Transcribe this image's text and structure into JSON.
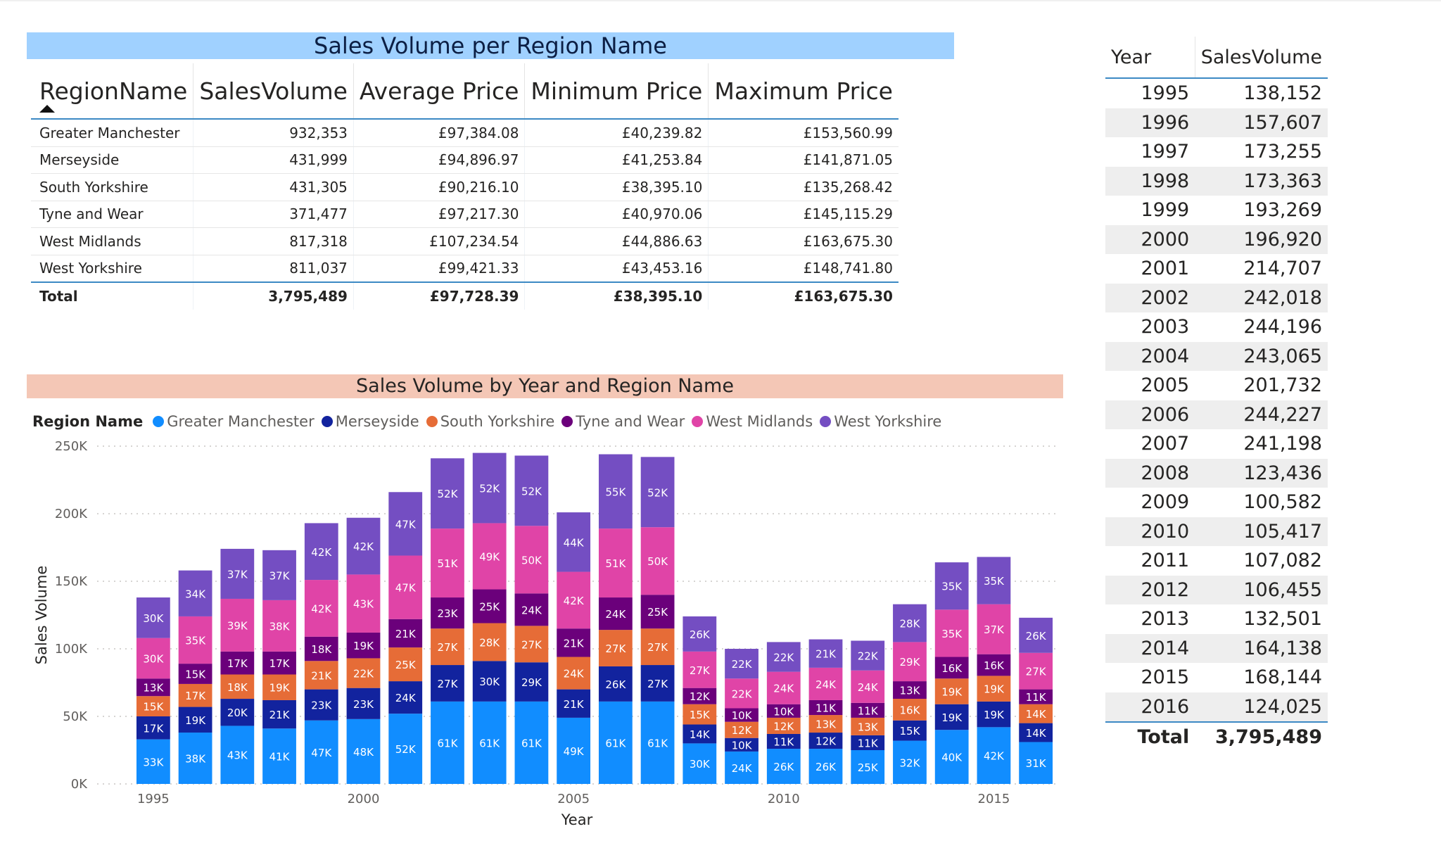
{
  "region_table": {
    "title": "Sales Volume per Region Name",
    "columns": [
      "RegionName",
      "SalesVolume",
      "Average Price",
      "Minimum Price",
      "Maximum Price"
    ],
    "rows": [
      [
        "Greater Manchester",
        "932,353",
        "£97,384.08",
        "£40,239.82",
        "£153,560.99"
      ],
      [
        "Merseyside",
        "431,999",
        "£94,896.97",
        "£41,253.84",
        "£141,871.05"
      ],
      [
        "South Yorkshire",
        "431,305",
        "£90,216.10",
        "£38,395.10",
        "£135,268.42"
      ],
      [
        "Tyne and Wear",
        "371,477",
        "£97,217.30",
        "£40,970.06",
        "£145,115.29"
      ],
      [
        "West Midlands",
        "817,318",
        "£107,234.54",
        "£44,886.63",
        "£163,675.30"
      ],
      [
        "West Yorkshire",
        "811,037",
        "£99,421.33",
        "£43,453.16",
        "£148,741.80"
      ]
    ],
    "total": [
      "Total",
      "3,795,489",
      "£97,728.39",
      "£38,395.10",
      "£163,675.30"
    ]
  },
  "year_table": {
    "columns": [
      "Year",
      "SalesVolume"
    ],
    "rows": [
      [
        "1995",
        "138,152"
      ],
      [
        "1996",
        "157,607"
      ],
      [
        "1997",
        "173,255"
      ],
      [
        "1998",
        "173,363"
      ],
      [
        "1999",
        "193,269"
      ],
      [
        "2000",
        "196,920"
      ],
      [
        "2001",
        "214,707"
      ],
      [
        "2002",
        "242,018"
      ],
      [
        "2003",
        "244,196"
      ],
      [
        "2004",
        "243,065"
      ],
      [
        "2005",
        "201,732"
      ],
      [
        "2006",
        "244,227"
      ],
      [
        "2007",
        "241,198"
      ],
      [
        "2008",
        "123,436"
      ],
      [
        "2009",
        "100,582"
      ],
      [
        "2010",
        "105,417"
      ],
      [
        "2011",
        "107,082"
      ],
      [
        "2012",
        "106,455"
      ],
      [
        "2013",
        "132,501"
      ],
      [
        "2014",
        "164,138"
      ],
      [
        "2015",
        "168,144"
      ],
      [
        "2016",
        "124,025"
      ]
    ],
    "total": [
      "Total",
      "3,795,489"
    ]
  },
  "chart_data": {
    "type": "bar",
    "stacked": true,
    "title": "Sales Volume by Year and Region Name",
    "legend_title": "Region Name",
    "xlabel": "Year",
    "ylabel": "Sales Volume",
    "ylim": [
      0,
      250000
    ],
    "y_ticks": [
      0,
      50000,
      100000,
      150000,
      200000,
      250000
    ],
    "y_tick_labels": [
      "0K",
      "50K",
      "100K",
      "150K",
      "200K",
      "250K"
    ],
    "x_tick_labels": [
      "1995",
      "2000",
      "2005",
      "2010",
      "2015"
    ],
    "grid": true,
    "legend_position": "top-left",
    "categories": [
      1995,
      1996,
      1997,
      1998,
      1999,
      2000,
      2001,
      2002,
      2003,
      2004,
      2005,
      2006,
      2007,
      2008,
      2009,
      2010,
      2011,
      2012,
      2013,
      2014,
      2015,
      2016
    ],
    "series": [
      {
        "name": "Greater Manchester",
        "color": "#118dff",
        "values": [
          33,
          38,
          43,
          41,
          47,
          48,
          52,
          61,
          61,
          61,
          49,
          61,
          61,
          30,
          24,
          26,
          26,
          25,
          32,
          40,
          42,
          31
        ]
      },
      {
        "name": "Merseyside",
        "color": "#12239e",
        "values": [
          17,
          19,
          20,
          21,
          23,
          23,
          24,
          27,
          30,
          29,
          21,
          26,
          27,
          14,
          10,
          11,
          12,
          11,
          15,
          19,
          19,
          14
        ]
      },
      {
        "name": "South Yorkshire",
        "color": "#e66c37",
        "values": [
          15,
          17,
          18,
          19,
          21,
          22,
          25,
          27,
          28,
          27,
          24,
          27,
          27,
          15,
          12,
          12,
          13,
          13,
          16,
          19,
          19,
          14
        ]
      },
      {
        "name": "Tyne and Wear",
        "color": "#6b007b",
        "values": [
          13,
          15,
          17,
          17,
          18,
          19,
          21,
          23,
          25,
          24,
          21,
          24,
          25,
          12,
          10,
          10,
          11,
          11,
          13,
          16,
          16,
          11
        ]
      },
      {
        "name": "West Midlands",
        "color": "#e044a7",
        "values": [
          30,
          35,
          39,
          38,
          42,
          43,
          47,
          51,
          49,
          50,
          42,
          51,
          50,
          27,
          22,
          24,
          24,
          24,
          29,
          35,
          37,
          27
        ]
      },
      {
        "name": "West Yorkshire",
        "color": "#744ec2",
        "values": [
          30,
          34,
          37,
          37,
          42,
          42,
          47,
          52,
          52,
          52,
          44,
          55,
          52,
          26,
          22,
          22,
          21,
          22,
          28,
          35,
          35,
          26
        ]
      }
    ],
    "value_unit": "K"
  }
}
